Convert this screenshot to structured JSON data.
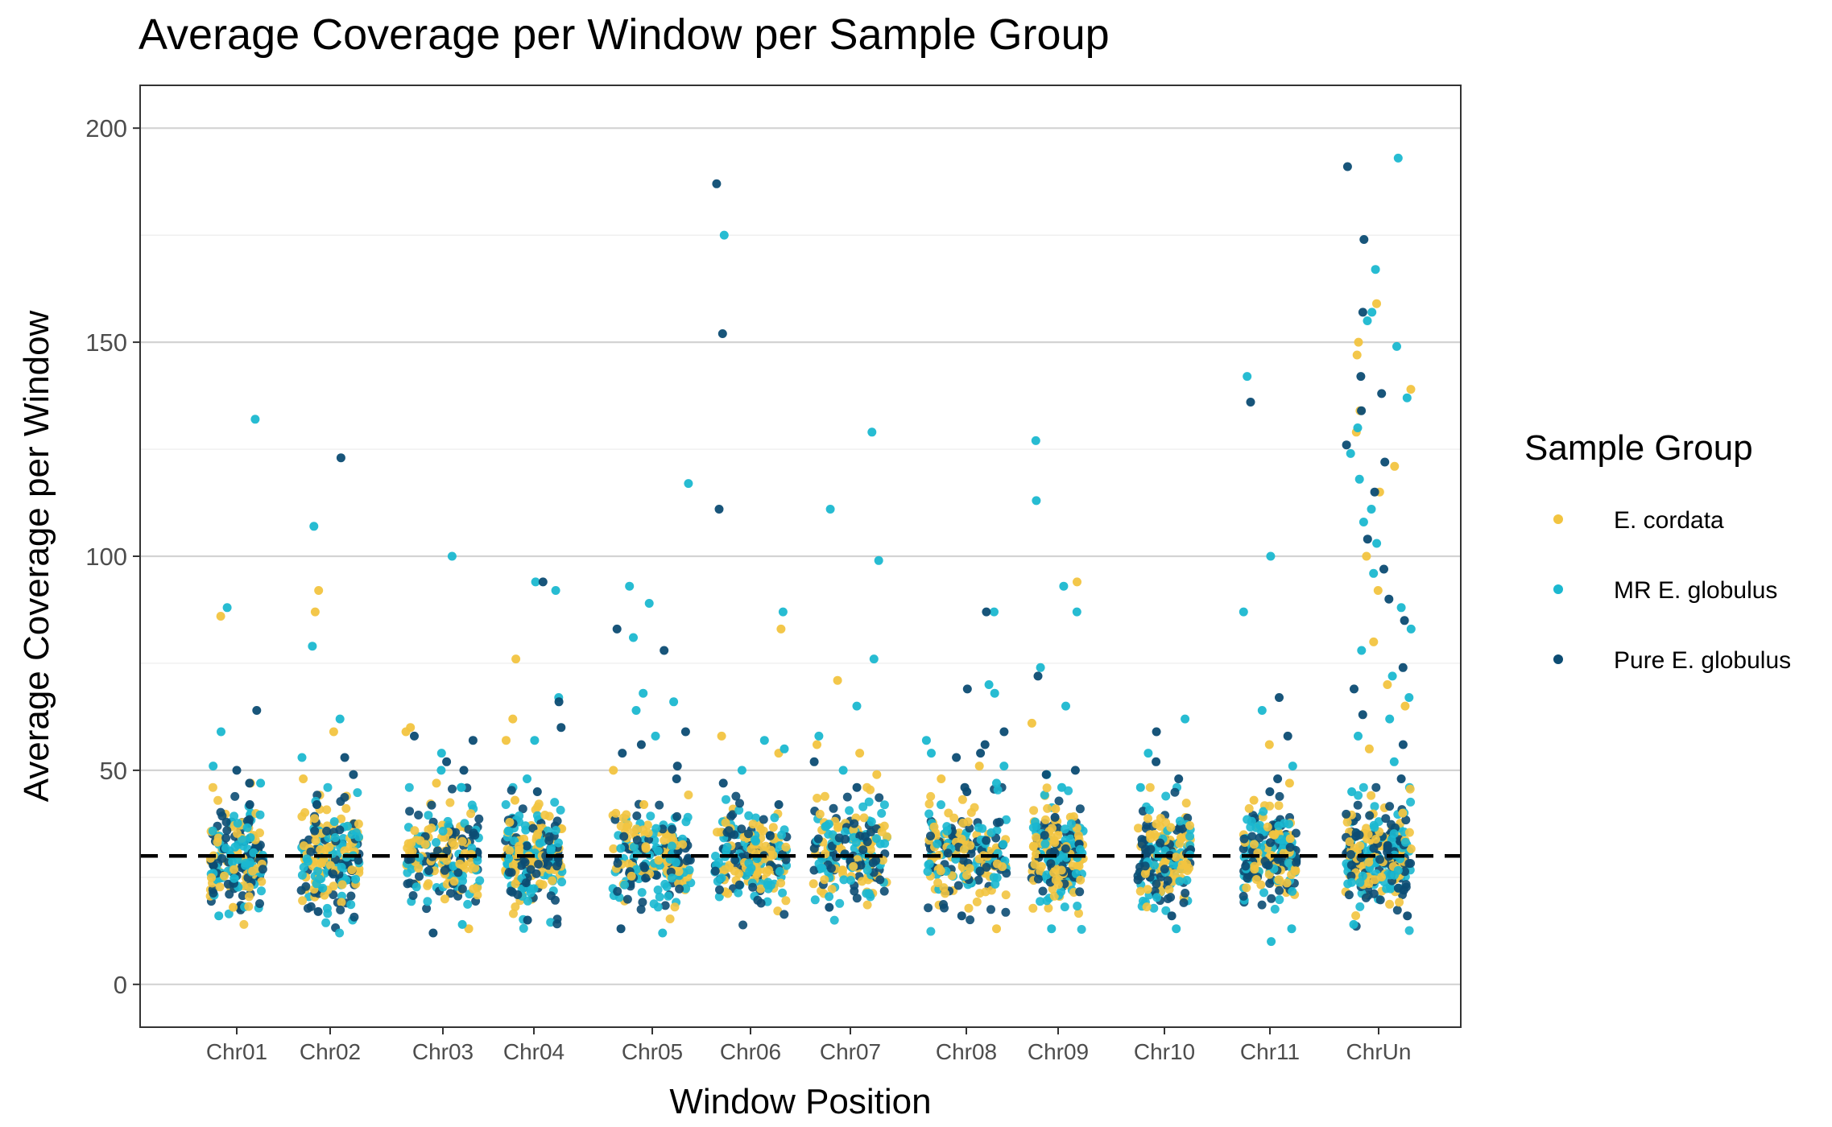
{
  "chart_data": {
    "type": "scatter",
    "title": "Average Coverage per Window per Sample Group",
    "xlabel": "Window Position",
    "ylabel": "Average Coverage per Window",
    "ylim": [
      -10,
      210
    ],
    "yticks": [
      0,
      50,
      100,
      150,
      200
    ],
    "categories": [
      "Chr01",
      "Chr02",
      "Chr03",
      "Chr04",
      "Chr05",
      "Chr06",
      "Chr07",
      "Chr08",
      "Chr09",
      "Chr10",
      "Chr11",
      "ChrUn"
    ],
    "reference_line": {
      "y": 30,
      "style": "dashed",
      "color": "#000000"
    },
    "grid": true,
    "legend": {
      "title": "Sample Group",
      "position": "right"
    },
    "series": [
      {
        "name": "E. cordata",
        "color": "#F2C440",
        "outliers": [
          {
            "category": "Chr01",
            "y": 86
          },
          {
            "category": "Chr01",
            "y": 47
          },
          {
            "category": "Chr01",
            "y": 18
          },
          {
            "category": "Chr02",
            "y": 92
          },
          {
            "category": "Chr02",
            "y": 87
          },
          {
            "category": "Chr02",
            "y": 59
          },
          {
            "category": "Chr02",
            "y": 48
          },
          {
            "category": "Chr03",
            "y": 60
          },
          {
            "category": "Chr03",
            "y": 59
          },
          {
            "category": "Chr03",
            "y": 47
          },
          {
            "category": "Chr03",
            "y": 13
          },
          {
            "category": "Chr04",
            "y": 76
          },
          {
            "category": "Chr04",
            "y": 62
          },
          {
            "category": "Chr04",
            "y": 57
          },
          {
            "category": "Chr04",
            "y": 43
          },
          {
            "category": "Chr05",
            "y": 50
          },
          {
            "category": "Chr05",
            "y": 42
          },
          {
            "category": "Chr06",
            "y": 83
          },
          {
            "category": "Chr06",
            "y": 58
          },
          {
            "category": "Chr06",
            "y": 54
          },
          {
            "category": "Chr07",
            "y": 71
          },
          {
            "category": "Chr07",
            "y": 56
          },
          {
            "category": "Chr07",
            "y": 54
          },
          {
            "category": "Chr07",
            "y": 49
          },
          {
            "category": "Chr08",
            "y": 51
          },
          {
            "category": "Chr08",
            "y": 48
          },
          {
            "category": "Chr08",
            "y": 13
          },
          {
            "category": "Chr09",
            "y": 94
          },
          {
            "category": "Chr09",
            "y": 61
          },
          {
            "category": "Chr09",
            "y": 41
          },
          {
            "category": "Chr10",
            "y": 35
          },
          {
            "category": "Chr11",
            "y": 56
          },
          {
            "category": "Chr11",
            "y": 47
          },
          {
            "category": "Chr11",
            "y": 43
          },
          {
            "category": "ChrUn",
            "y": 159
          },
          {
            "category": "ChrUn",
            "y": 150
          },
          {
            "category": "ChrUn",
            "y": 147
          },
          {
            "category": "ChrUn",
            "y": 139
          },
          {
            "category": "ChrUn",
            "y": 134
          },
          {
            "category": "ChrUn",
            "y": 129
          },
          {
            "category": "ChrUn",
            "y": 121
          },
          {
            "category": "ChrUn",
            "y": 115
          },
          {
            "category": "ChrUn",
            "y": 100
          },
          {
            "category": "ChrUn",
            "y": 92
          },
          {
            "category": "ChrUn",
            "y": 80
          },
          {
            "category": "ChrUn",
            "y": 70
          },
          {
            "category": "ChrUn",
            "y": 65
          },
          {
            "category": "ChrUn",
            "y": 55
          },
          {
            "category": "ChrUn",
            "y": 40
          }
        ]
      },
      {
        "name": "MR E. globulus",
        "color": "#1BB8D0",
        "outliers": [
          {
            "category": "Chr01",
            "y": 132
          },
          {
            "category": "Chr01",
            "y": 88
          },
          {
            "category": "Chr01",
            "y": 59
          },
          {
            "category": "Chr01",
            "y": 51
          },
          {
            "category": "Chr01",
            "y": 47
          },
          {
            "category": "Chr01",
            "y": 16
          },
          {
            "category": "Chr02",
            "y": 107
          },
          {
            "category": "Chr02",
            "y": 79
          },
          {
            "category": "Chr02",
            "y": 62
          },
          {
            "category": "Chr02",
            "y": 53
          },
          {
            "category": "Chr03",
            "y": 100
          },
          {
            "category": "Chr03",
            "y": 54
          },
          {
            "category": "Chr03",
            "y": 50
          },
          {
            "category": "Chr03",
            "y": 14
          },
          {
            "category": "Chr04",
            "y": 94
          },
          {
            "category": "Chr04",
            "y": 92
          },
          {
            "category": "Chr04",
            "y": 67
          },
          {
            "category": "Chr04",
            "y": 57
          },
          {
            "category": "Chr04",
            "y": 48
          },
          {
            "category": "Chr05",
            "y": 117
          },
          {
            "category": "Chr05",
            "y": 93
          },
          {
            "category": "Chr05",
            "y": 89
          },
          {
            "category": "Chr05",
            "y": 81
          },
          {
            "category": "Chr05",
            "y": 68
          },
          {
            "category": "Chr05",
            "y": 66
          },
          {
            "category": "Chr05",
            "y": 64
          },
          {
            "category": "Chr05",
            "y": 58
          },
          {
            "category": "Chr05",
            "y": 12
          },
          {
            "category": "Chr06",
            "y": 175
          },
          {
            "category": "Chr06",
            "y": 87
          },
          {
            "category": "Chr06",
            "y": 57
          },
          {
            "category": "Chr06",
            "y": 55
          },
          {
            "category": "Chr06",
            "y": 50
          },
          {
            "category": "Chr07",
            "y": 129
          },
          {
            "category": "Chr07",
            "y": 111
          },
          {
            "category": "Chr07",
            "y": 99
          },
          {
            "category": "Chr07",
            "y": 76
          },
          {
            "category": "Chr07",
            "y": 65
          },
          {
            "category": "Chr07",
            "y": 58
          },
          {
            "category": "Chr07",
            "y": 50
          },
          {
            "category": "Chr08",
            "y": 87
          },
          {
            "category": "Chr08",
            "y": 70
          },
          {
            "category": "Chr08",
            "y": 68
          },
          {
            "category": "Chr08",
            "y": 57
          },
          {
            "category": "Chr08",
            "y": 54
          },
          {
            "category": "Chr08",
            "y": 51
          },
          {
            "category": "Chr08",
            "y": 47
          },
          {
            "category": "Chr09",
            "y": 127
          },
          {
            "category": "Chr09",
            "y": 113
          },
          {
            "category": "Chr09",
            "y": 93
          },
          {
            "category": "Chr09",
            "y": 87
          },
          {
            "category": "Chr09",
            "y": 74
          },
          {
            "category": "Chr09",
            "y": 65
          },
          {
            "category": "Chr09",
            "y": 49
          },
          {
            "category": "Chr09",
            "y": 46
          },
          {
            "category": "Chr09",
            "y": 13
          },
          {
            "category": "Chr10",
            "y": 62
          },
          {
            "category": "Chr10",
            "y": 54
          },
          {
            "category": "Chr10",
            "y": 46
          },
          {
            "category": "Chr10",
            "y": 13
          },
          {
            "category": "Chr11",
            "y": 142
          },
          {
            "category": "Chr11",
            "y": 100
          },
          {
            "category": "Chr11",
            "y": 87
          },
          {
            "category": "Chr11",
            "y": 64
          },
          {
            "category": "Chr11",
            "y": 51
          },
          {
            "category": "Chr11",
            "y": 13
          },
          {
            "category": "Chr11",
            "y": 10
          },
          {
            "category": "ChrUn",
            "y": 193
          },
          {
            "category": "ChrUn",
            "y": 167
          },
          {
            "category": "ChrUn",
            "y": 157
          },
          {
            "category": "ChrUn",
            "y": 155
          },
          {
            "category": "ChrUn",
            "y": 149
          },
          {
            "category": "ChrUn",
            "y": 137
          },
          {
            "category": "ChrUn",
            "y": 130
          },
          {
            "category": "ChrUn",
            "y": 124
          },
          {
            "category": "ChrUn",
            "y": 118
          },
          {
            "category": "ChrUn",
            "y": 111
          },
          {
            "category": "ChrUn",
            "y": 108
          },
          {
            "category": "ChrUn",
            "y": 103
          },
          {
            "category": "ChrUn",
            "y": 96
          },
          {
            "category": "ChrUn",
            "y": 88
          },
          {
            "category": "ChrUn",
            "y": 83
          },
          {
            "category": "ChrUn",
            "y": 78
          },
          {
            "category": "ChrUn",
            "y": 72
          },
          {
            "category": "ChrUn",
            "y": 67
          },
          {
            "category": "ChrUn",
            "y": 62
          },
          {
            "category": "ChrUn",
            "y": 58
          },
          {
            "category": "ChrUn",
            "y": 52
          },
          {
            "category": "ChrUn",
            "y": 45
          },
          {
            "category": "ChrUn",
            "y": 14
          }
        ]
      },
      {
        "name": "Pure E. globulus",
        "color": "#0C4C73",
        "outliers": [
          {
            "category": "Chr01",
            "y": 64
          },
          {
            "category": "Chr01",
            "y": 50
          },
          {
            "category": "Chr01",
            "y": 47
          },
          {
            "category": "Chr01",
            "y": 42
          },
          {
            "category": "Chr02",
            "y": 123
          },
          {
            "category": "Chr02",
            "y": 53
          },
          {
            "category": "Chr02",
            "y": 49
          },
          {
            "category": "Chr02",
            "y": 42
          },
          {
            "category": "Chr02",
            "y": 17
          },
          {
            "category": "Chr03",
            "y": 58
          },
          {
            "category": "Chr03",
            "y": 57
          },
          {
            "category": "Chr03",
            "y": 52
          },
          {
            "category": "Chr03",
            "y": 50
          },
          {
            "category": "Chr03",
            "y": 12
          },
          {
            "category": "Chr04",
            "y": 94
          },
          {
            "category": "Chr04",
            "y": 66
          },
          {
            "category": "Chr04",
            "y": 60
          },
          {
            "category": "Chr04",
            "y": 45
          },
          {
            "category": "Chr04",
            "y": 15
          },
          {
            "category": "Chr05",
            "y": 83
          },
          {
            "category": "Chr05",
            "y": 78
          },
          {
            "category": "Chr05",
            "y": 59
          },
          {
            "category": "Chr05",
            "y": 56
          },
          {
            "category": "Chr05",
            "y": 54
          },
          {
            "category": "Chr05",
            "y": 51
          },
          {
            "category": "Chr05",
            "y": 48
          },
          {
            "category": "Chr05",
            "y": 13
          },
          {
            "category": "Chr06",
            "y": 187
          },
          {
            "category": "Chr06",
            "y": 152
          },
          {
            "category": "Chr06",
            "y": 111
          },
          {
            "category": "Chr06",
            "y": 47
          },
          {
            "category": "Chr06",
            "y": 42
          },
          {
            "category": "Chr07",
            "y": 52
          },
          {
            "category": "Chr07",
            "y": 46
          },
          {
            "category": "Chr07",
            "y": 18
          },
          {
            "category": "Chr08",
            "y": 87
          },
          {
            "category": "Chr08",
            "y": 69
          },
          {
            "category": "Chr08",
            "y": 59
          },
          {
            "category": "Chr08",
            "y": 56
          },
          {
            "category": "Chr08",
            "y": 54
          },
          {
            "category": "Chr08",
            "y": 53
          },
          {
            "category": "Chr08",
            "y": 46
          },
          {
            "category": "Chr08",
            "y": 45
          },
          {
            "category": "Chr08",
            "y": 16
          },
          {
            "category": "Chr09",
            "y": 72
          },
          {
            "category": "Chr09",
            "y": 50
          },
          {
            "category": "Chr09",
            "y": 49
          },
          {
            "category": "Chr09",
            "y": 39
          },
          {
            "category": "Chr10",
            "y": 59
          },
          {
            "category": "Chr10",
            "y": 52
          },
          {
            "category": "Chr10",
            "y": 48
          },
          {
            "category": "Chr10",
            "y": 16
          },
          {
            "category": "Chr11",
            "y": 136
          },
          {
            "category": "Chr11",
            "y": 67
          },
          {
            "category": "Chr11",
            "y": 58
          },
          {
            "category": "Chr11",
            "y": 48
          },
          {
            "category": "Chr11",
            "y": 45
          },
          {
            "category": "ChrUn",
            "y": 191
          },
          {
            "category": "ChrUn",
            "y": 174
          },
          {
            "category": "ChrUn",
            "y": 157
          },
          {
            "category": "ChrUn",
            "y": 142
          },
          {
            "category": "ChrUn",
            "y": 138
          },
          {
            "category": "ChrUn",
            "y": 134
          },
          {
            "category": "ChrUn",
            "y": 126
          },
          {
            "category": "ChrUn",
            "y": 122
          },
          {
            "category": "ChrUn",
            "y": 115
          },
          {
            "category": "ChrUn",
            "y": 104
          },
          {
            "category": "ChrUn",
            "y": 97
          },
          {
            "category": "ChrUn",
            "y": 90
          },
          {
            "category": "ChrUn",
            "y": 85
          },
          {
            "category": "ChrUn",
            "y": 74
          },
          {
            "category": "ChrUn",
            "y": 69
          },
          {
            "category": "ChrUn",
            "y": 63
          },
          {
            "category": "ChrUn",
            "y": 56
          },
          {
            "category": "ChrUn",
            "y": 48
          },
          {
            "category": "ChrUn",
            "y": 16
          }
        ]
      }
    ]
  }
}
